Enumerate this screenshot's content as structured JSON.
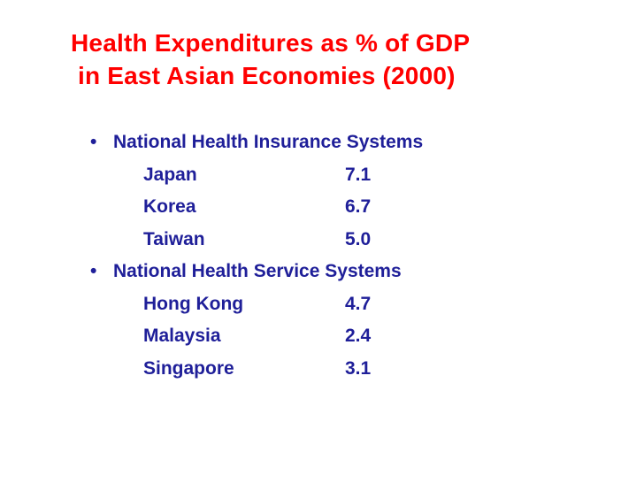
{
  "title": {
    "line1": "Health Expenditures as % of GDP",
    "line2": " in East Asian Economies (2000)"
  },
  "bullet_glyph": "•",
  "groups": [
    {
      "heading": "National Health Insurance Systems",
      "rows": [
        {
          "name": "Japan",
          "value": "7.1"
        },
        {
          "name": "Korea",
          "value": "6.7"
        },
        {
          "name": "Taiwan",
          "value": "5.0"
        }
      ]
    },
    {
      "heading": "National Health Service Systems",
      "rows": [
        {
          "name": "Hong Kong",
          "value": "4.7"
        },
        {
          "name": "Malaysia",
          "value": "2.4"
        },
        {
          "name": "Singapore",
          "value": "3.1"
        }
      ]
    }
  ],
  "colors": {
    "title": "#ff0000",
    "body": "#1f1f99",
    "background": "#ffffff"
  }
}
